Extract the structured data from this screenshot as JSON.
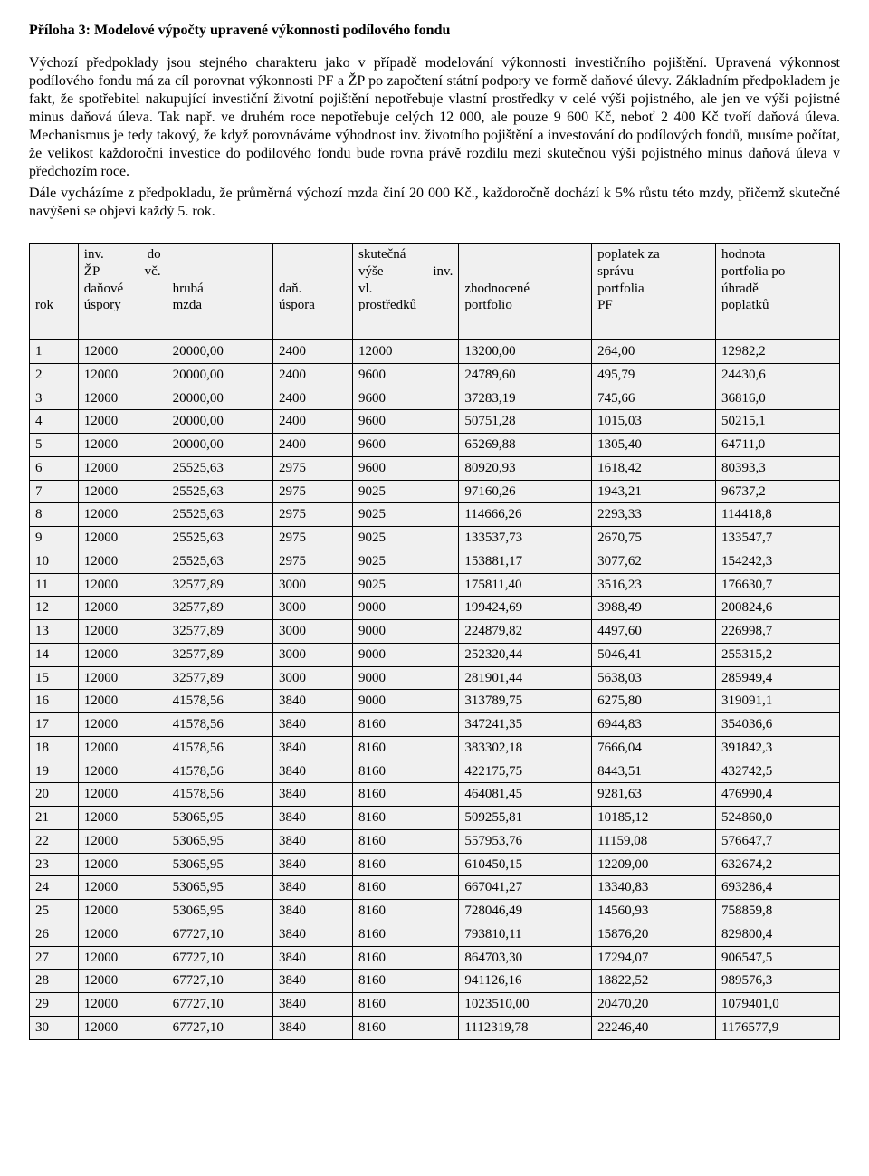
{
  "title": "Příloha 3: Modelové výpočty upravené výkonnosti podílového fondu",
  "paragraphs": [
    "Výchozí předpoklady jsou stejného charakteru jako v případě modelování výkonnosti investičního pojištění. Upravená výkonnost podílového fondu má za cíl porovnat výkonnosti PF a ŽP po započtení státní podpory ve formě daňové úlevy. Základním předpokladem je fakt, že spotřebitel nakupující investiční životní pojištění nepotřebuje vlastní prostředky v celé výši pojistného, ale jen ve výši pojistné minus daňová úleva. Tak např. ve druhém roce nepotřebuje celých 12 000, ale pouze 9 600 Kč, neboť 2 400 Kč tvoří daňová úleva. Mechanismus je tedy takový, že když porovnáváme výhodnost inv. životního pojištění a investování do podílových fondů, musíme počítat, že velikost každoroční investice do podílového fondu bude rovna právě rozdílu mezi skutečnou výší pojistného minus daňová úleva v předchozím roce.",
    "Dále vycházíme z předpokladu, že průměrná výchozí mzda činí 20 000 Kč., každoročně dochází k 5% růstu této mzdy, přičemž skutečné navýšení se objeví každý 5. rok."
  ],
  "table": {
    "headers": {
      "rok": "rok",
      "inv_l1a": "inv.",
      "inv_l1b": "do",
      "inv_l2a": "ŽP",
      "inv_l2b": "vč.",
      "inv_l3": "daňové",
      "inv_l4": "úspory",
      "mzda_l1": "hrubá",
      "mzda_l2": "mzda",
      "uspora_l1": "daň.",
      "uspora_l2": "úspora",
      "skut_l1": "skutečná",
      "skut_l2a": "výše",
      "skut_l2b": "inv.",
      "skut_l3": "vl.",
      "skut_l4": "prostředků",
      "zhod_l1": "zhodnocené",
      "zhod_l2": "portfolio",
      "popl_l1": "poplatek za",
      "popl_l2": "správu",
      "popl_l3": "portfolia",
      "popl_l4": "PF",
      "hod_l1": "hodnota",
      "hod_l2": "portfolia po",
      "hod_l3": "úhradě",
      "hod_l4": "poplatků"
    },
    "rows": [
      {
        "rok": "1",
        "inv": "12000",
        "mzda": "20000,00",
        "uspora": "2400",
        "skut": "12000",
        "zhod": "13200,00",
        "popl": "264,00",
        "hod": "12982,2"
      },
      {
        "rok": "2",
        "inv": "12000",
        "mzda": "20000,00",
        "uspora": "2400",
        "skut": "9600",
        "zhod": "24789,60",
        "popl": "495,79",
        "hod": "24430,6"
      },
      {
        "rok": "3",
        "inv": "12000",
        "mzda": "20000,00",
        "uspora": "2400",
        "skut": "9600",
        "zhod": "37283,19",
        "popl": "745,66",
        "hod": "36816,0"
      },
      {
        "rok": "4",
        "inv": "12000",
        "mzda": "20000,00",
        "uspora": "2400",
        "skut": "9600",
        "zhod": "50751,28",
        "popl": "1015,03",
        "hod": "50215,1"
      },
      {
        "rok": "5",
        "inv": "12000",
        "mzda": "20000,00",
        "uspora": "2400",
        "skut": "9600",
        "zhod": "65269,88",
        "popl": "1305,40",
        "hod": "64711,0"
      },
      {
        "rok": "6",
        "inv": "12000",
        "mzda": "25525,63",
        "uspora": "2975",
        "skut": "9600",
        "zhod": "80920,93",
        "popl": "1618,42",
        "hod": "80393,3"
      },
      {
        "rok": "7",
        "inv": "12000",
        "mzda": "25525,63",
        "uspora": "2975",
        "skut": "9025",
        "zhod": "97160,26",
        "popl": "1943,21",
        "hod": "96737,2"
      },
      {
        "rok": "8",
        "inv": "12000",
        "mzda": "25525,63",
        "uspora": "2975",
        "skut": "9025",
        "zhod": "114666,26",
        "popl": "2293,33",
        "hod": "114418,8"
      },
      {
        "rok": "9",
        "inv": "12000",
        "mzda": "25525,63",
        "uspora": "2975",
        "skut": "9025",
        "zhod": "133537,73",
        "popl": "2670,75",
        "hod": "133547,7"
      },
      {
        "rok": "10",
        "inv": "12000",
        "mzda": "25525,63",
        "uspora": "2975",
        "skut": "9025",
        "zhod": "153881,17",
        "popl": "3077,62",
        "hod": "154242,3"
      },
      {
        "rok": "11",
        "inv": "12000",
        "mzda": "32577,89",
        "uspora": "3000",
        "skut": "9025",
        "zhod": "175811,40",
        "popl": "3516,23",
        "hod": "176630,7"
      },
      {
        "rok": "12",
        "inv": "12000",
        "mzda": "32577,89",
        "uspora": "3000",
        "skut": "9000",
        "zhod": "199424,69",
        "popl": "3988,49",
        "hod": "200824,6"
      },
      {
        "rok": "13",
        "inv": "12000",
        "mzda": "32577,89",
        "uspora": "3000",
        "skut": "9000",
        "zhod": "224879,82",
        "popl": "4497,60",
        "hod": "226998,7"
      },
      {
        "rok": "14",
        "inv": "12000",
        "mzda": "32577,89",
        "uspora": "3000",
        "skut": "9000",
        "zhod": "252320,44",
        "popl": "5046,41",
        "hod": "255315,2"
      },
      {
        "rok": "15",
        "inv": "12000",
        "mzda": "32577,89",
        "uspora": "3000",
        "skut": "9000",
        "zhod": "281901,44",
        "popl": "5638,03",
        "hod": "285949,4"
      },
      {
        "rok": "16",
        "inv": "12000",
        "mzda": "41578,56",
        "uspora": "3840",
        "skut": "9000",
        "zhod": "313789,75",
        "popl": "6275,80",
        "hod": "319091,1"
      },
      {
        "rok": "17",
        "inv": "12000",
        "mzda": "41578,56",
        "uspora": "3840",
        "skut": "8160",
        "zhod": "347241,35",
        "popl": "6944,83",
        "hod": "354036,6"
      },
      {
        "rok": "18",
        "inv": "12000",
        "mzda": "41578,56",
        "uspora": "3840",
        "skut": "8160",
        "zhod": "383302,18",
        "popl": "7666,04",
        "hod": "391842,3"
      },
      {
        "rok": "19",
        "inv": "12000",
        "mzda": "41578,56",
        "uspora": "3840",
        "skut": "8160",
        "zhod": "422175,75",
        "popl": "8443,51",
        "hod": "432742,5"
      },
      {
        "rok": "20",
        "inv": "12000",
        "mzda": "41578,56",
        "uspora": "3840",
        "skut": "8160",
        "zhod": "464081,45",
        "popl": "9281,63",
        "hod": "476990,4"
      },
      {
        "rok": "21",
        "inv": "12000",
        "mzda": "53065,95",
        "uspora": "3840",
        "skut": "8160",
        "zhod": "509255,81",
        "popl": "10185,12",
        "hod": "524860,0"
      },
      {
        "rok": "22",
        "inv": "12000",
        "mzda": "53065,95",
        "uspora": "3840",
        "skut": "8160",
        "zhod": "557953,76",
        "popl": "11159,08",
        "hod": "576647,7"
      },
      {
        "rok": "23",
        "inv": "12000",
        "mzda": "53065,95",
        "uspora": "3840",
        "skut": "8160",
        "zhod": "610450,15",
        "popl": "12209,00",
        "hod": "632674,2"
      },
      {
        "rok": "24",
        "inv": "12000",
        "mzda": "53065,95",
        "uspora": "3840",
        "skut": "8160",
        "zhod": "667041,27",
        "popl": "13340,83",
        "hod": "693286,4"
      },
      {
        "rok": "25",
        "inv": "12000",
        "mzda": "53065,95",
        "uspora": "3840",
        "skut": "8160",
        "zhod": "728046,49",
        "popl": "14560,93",
        "hod": "758859,8"
      },
      {
        "rok": "26",
        "inv": "12000",
        "mzda": "67727,10",
        "uspora": "3840",
        "skut": "8160",
        "zhod": "793810,11",
        "popl": "15876,20",
        "hod": "829800,4"
      },
      {
        "rok": "27",
        "inv": "12000",
        "mzda": "67727,10",
        "uspora": "3840",
        "skut": "8160",
        "zhod": "864703,30",
        "popl": "17294,07",
        "hod": "906547,5"
      },
      {
        "rok": "28",
        "inv": "12000",
        "mzda": "67727,10",
        "uspora": "3840",
        "skut": "8160",
        "zhod": "941126,16",
        "popl": "18822,52",
        "hod": "989576,3"
      },
      {
        "rok": "29",
        "inv": "12000",
        "mzda": "67727,10",
        "uspora": "3840",
        "skut": "8160",
        "zhod": "1023510,00",
        "popl": "20470,20",
        "hod": "1079401,0"
      },
      {
        "rok": "30",
        "inv": "12000",
        "mzda": "67727,10",
        "uspora": "3840",
        "skut": "8160",
        "zhod": "1112319,78",
        "popl": "22246,40",
        "hod": "1176577,9"
      }
    ]
  }
}
